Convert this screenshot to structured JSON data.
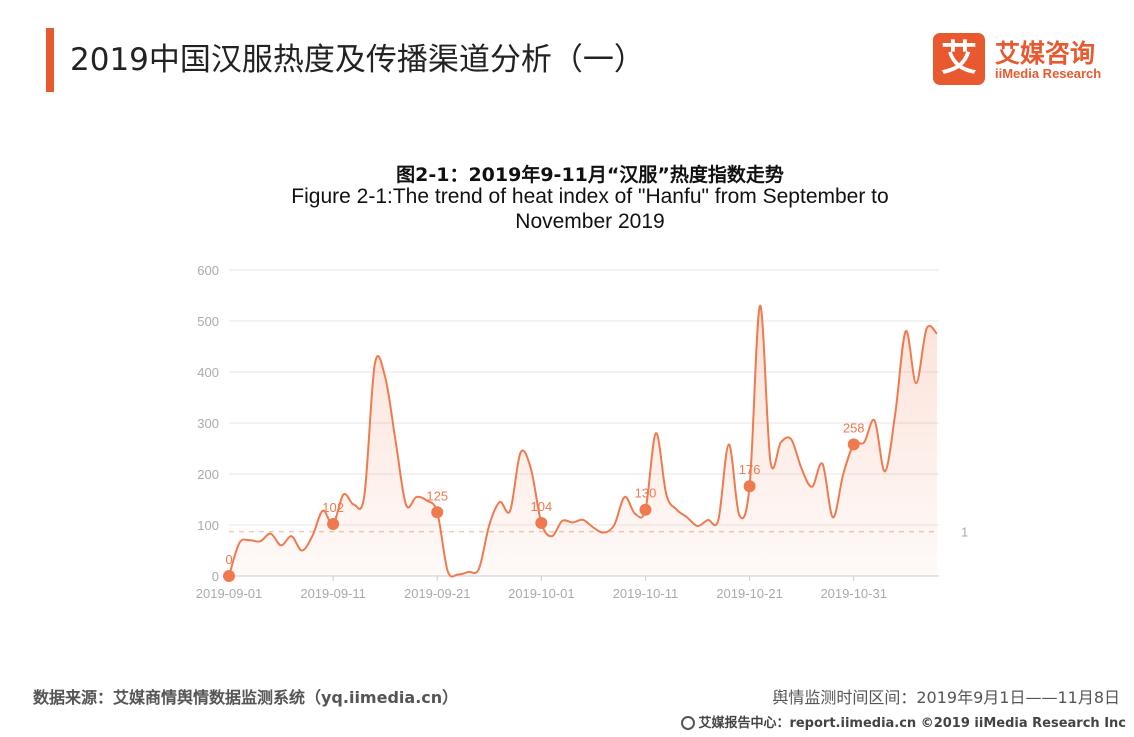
{
  "header": {
    "title": "2019中国汉服热度及传播渠道分析（一）",
    "accent_color": "#e8592f"
  },
  "logo": {
    "mark": "艾",
    "name": "艾媒咨询",
    "sub": "iiMedia Research"
  },
  "chart_data": {
    "type": "area",
    "title": "图2-1：2019年9-11月“汉服”热度指数走势",
    "subtitle_line1": "Figure 2-1:The trend of heat index of \"Hanfu\" from September to",
    "subtitle_line2": "November 2019",
    "ylim": [
      0,
      600
    ],
    "y_ticks": [
      "0",
      "100",
      "200",
      "300",
      "400",
      "500",
      "600"
    ],
    "x_tick_labels": [
      "2019-09-01",
      "2019-09-11",
      "2019-09-21",
      "2019-10-01",
      "2019-10-11",
      "2019-10-21",
      "2019-10-31"
    ],
    "grid": true,
    "line_color": "#f07a4f",
    "series": [
      {
        "values": [
          0,
          65,
          70,
          68,
          83,
          60,
          78,
          50,
          78,
          128,
          102,
          160,
          140,
          158,
          415,
          390,
          265,
          140,
          155,
          148,
          125,
          10,
          3,
          8,
          14,
          100,
          145,
          128,
          242,
          210,
          104,
          78,
          108,
          105,
          110,
          95,
          85,
          100,
          155,
          122,
          130,
          280,
          160,
          130,
          115,
          98,
          110,
          110,
          258,
          120,
          176,
          530,
          225,
          262,
          268,
          210,
          175,
          220,
          115,
          200,
          258,
          262,
          305,
          205,
          320,
          480,
          378,
          485,
          475
        ]
      }
    ],
    "marked_points": [
      {
        "index": 0,
        "label": "0"
      },
      {
        "index": 10,
        "label": "102"
      },
      {
        "index": 20,
        "label": "125"
      },
      {
        "index": 30,
        "label": "104"
      },
      {
        "index": 40,
        "label": "130"
      },
      {
        "index": 50,
        "label": "176"
      },
      {
        "index": 60,
        "label": "258"
      }
    ],
    "markline_label": "1"
  },
  "footer": {
    "source": "数据来源：艾媒商情舆情数据监测系统（yq.iimedia.cn）",
    "period": "舆情监测时间区间：2019年9月1日——11月8日",
    "bottom": "艾媒报告中心：report.iimedia.cn  ©2019  iiMedia Research  Inc"
  }
}
